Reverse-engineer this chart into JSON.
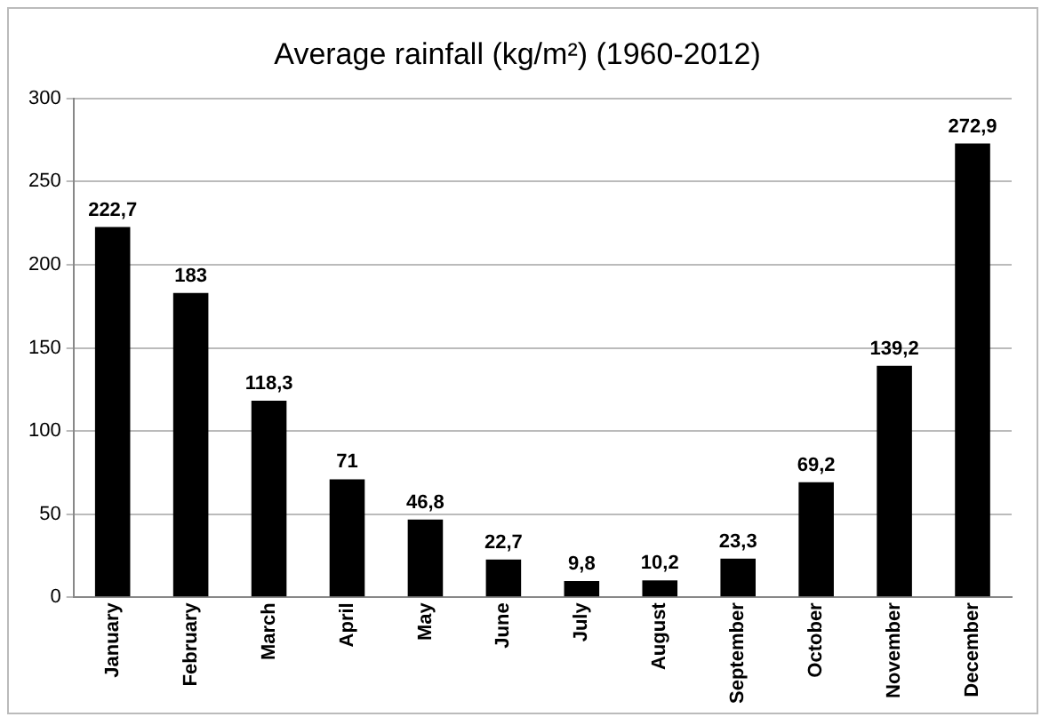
{
  "chart_data": {
    "type": "bar",
    "title": "Average rainfall (kg/m²) (1960-2012)",
    "categories": [
      "January",
      "February",
      "March",
      "April",
      "May",
      "June",
      "July",
      "August",
      "September",
      "October",
      "November",
      "December"
    ],
    "values": [
      222.7,
      183,
      118.3,
      71,
      46.8,
      22.7,
      9.8,
      10.2,
      23.3,
      69.2,
      139.2,
      272.9
    ],
    "value_labels": [
      "222,7",
      "183",
      "118,3",
      "71",
      "46,8",
      "22,7",
      "9,8",
      "10,2",
      "23,3",
      "69,2",
      "139,2",
      "272,9"
    ],
    "color": "#000000",
    "ylim": [
      0,
      300
    ],
    "yticks": [
      0,
      50,
      100,
      150,
      200,
      250,
      300
    ],
    "grid": "y"
  }
}
